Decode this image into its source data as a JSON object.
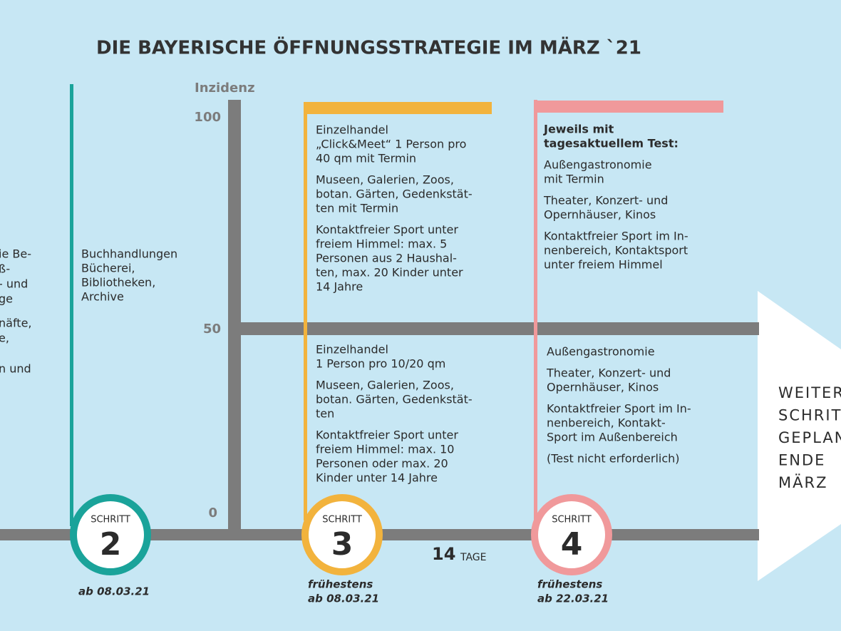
{
  "title": "DIE BAYERISCHE ÖFFNUNGSSTRATEGIE IM MÄRZ `21",
  "left_fragments": [
    "ie Be-",
    "ß-",
    "- und",
    "ge",
    "näfte,",
    "e,",
    "n und"
  ],
  "axis": {
    "label": "Inzidenz",
    "ticks": [
      "100",
      "50",
      "0"
    ]
  },
  "steps": [
    {
      "label": "SCHRITT",
      "number": "2",
      "date": [
        "ab 08.03.21"
      ],
      "text": [
        [
          "Buchhandlungen",
          "Bücherei,",
          "Bibliotheken,",
          "Archive"
        ]
      ]
    },
    {
      "label": "SCHRITT",
      "number": "3",
      "date": [
        "frühestens",
        "ab 08.03.21"
      ],
      "above": [
        [
          "Einzelhandel",
          "„Click&Meet“ 1 Person pro",
          "40 qm mit Termin"
        ],
        [
          "Museen, Galerien, Zoos,",
          "botan. Gärten, Gedenkstät-",
          "ten mit Termin"
        ],
        [
          "Kontaktfreier Sport unter",
          "freiem Himmel: max. 5",
          "Personen aus 2 Haushal-",
          "ten,  max. 20 Kinder unter",
          "14 Jahre"
        ]
      ],
      "below": [
        [
          "Einzelhandel",
          "1 Person pro 10/20 qm"
        ],
        [
          "Museen, Galerien, Zoos,",
          "botan. Gärten, Gedenkstät-",
          "ten"
        ],
        [
          "Kontaktfreier Sport unter",
          "freiem Himmel: max. 10",
          "Personen oder max. 20",
          "Kinder unter 14 Jahre"
        ]
      ]
    },
    {
      "label": "SCHRITT",
      "number": "4",
      "date": [
        "frühestens",
        "ab 22.03.21"
      ],
      "heading": [
        "Jeweils mit",
        "tagesaktuellem Test:"
      ],
      "above": [
        [
          "Außengastronomie",
          "mit Termin"
        ],
        [
          "Theater, Konzert- und",
          "Opernhäuser, Kinos"
        ],
        [
          "Kontaktfreier Sport im In-",
          "nenbereich, Kontaktsport",
          "unter freiem Himmel"
        ]
      ],
      "below": [
        [
          "Außengastronomie"
        ],
        [
          "Theater, Konzert- und",
          "Opernhäuser, Kinos"
        ],
        [
          "Kontaktfreier Sport im In-",
          "nenbereich, Kontakt-",
          "Sport im Außenbereich"
        ],
        [
          "(Test nicht erforderlich)"
        ]
      ]
    }
  ],
  "duration": {
    "number": "14",
    "unit": "TAGE"
  },
  "outlook": [
    "WEITERE",
    "SCHRITTE",
    "GEPLANT",
    "ENDE",
    "MÄRZ"
  ]
}
